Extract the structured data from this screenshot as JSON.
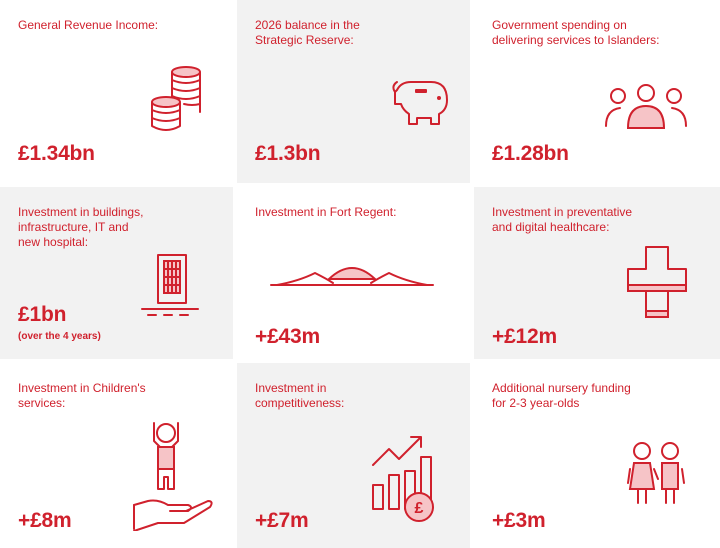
{
  "cards": [
    {
      "label": "General Revenue Income:",
      "value": "£1.34bn",
      "icon": "coin-stack-icon"
    },
    {
      "label": "2026 balance in the\nStrategic Reserve:",
      "value": "£1.3bn",
      "icon": "piggy-bank-icon"
    },
    {
      "label": "Government spending on\ndelivering services to Islanders:",
      "value": "£1.28bn",
      "icon": "people-group-icon"
    },
    {
      "label": "Investment in buildings,\ninfrastructure, IT and\nnew hospital:",
      "value": "£1bn",
      "note": "(over the 4 years)",
      "icon": "building-icon"
    },
    {
      "label": "Investment in Fort Regent:",
      "value": "+£43m",
      "icon": "fort-regent-icon"
    },
    {
      "label": "Investment in preventative\nand digital healthcare:",
      "value": "+£12m",
      "icon": "medical-cross-icon"
    },
    {
      "label": "Investment in Children's\nservices:",
      "value": "+£8m",
      "icon": "child-in-hand-icon"
    },
    {
      "label": "Investment in\ncompetitiveness:",
      "value": "+£7m",
      "icon": "growth-chart-pound-icon"
    },
    {
      "label": "Additional nursery funding\nfor 2-3 year-olds",
      "value": "+£3m",
      "icon": "two-children-icon"
    }
  ],
  "colors": {
    "accent": "#d0212d",
    "tile_grey": "#f2f2f2",
    "tile_white": "#ffffff"
  }
}
